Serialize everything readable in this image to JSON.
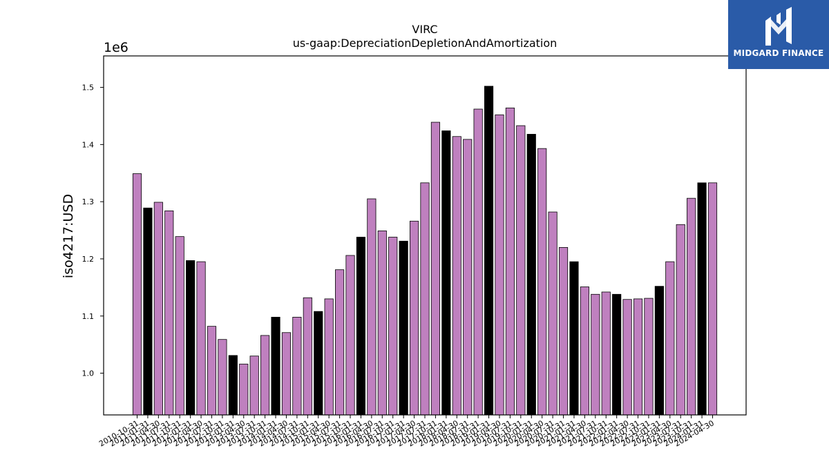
{
  "brand": {
    "name": "MIDGARD FINANCE",
    "logo_icon": "midgard-logo-icon",
    "bg_color": "#2a5ba8"
  },
  "chart_data": {
    "type": "bar",
    "title": "VIRC",
    "subtitle": "us-gaap:DepreciationDepletionAndAmortization",
    "ylabel": "iso4217:USD",
    "xlabel": "",
    "offset_text": "1e6",
    "scale": 1000000,
    "ylim": [
      0.927,
      1.555
    ],
    "yticks": [
      1.0,
      1.1,
      1.2,
      1.3,
      1.4,
      1.5
    ],
    "ytick_labels": [
      "1.0",
      "1.1",
      "1.2",
      "1.3",
      "1.4",
      "1.5"
    ],
    "grid": false,
    "colors": {
      "default": "#bf80bf",
      "highlight": "#000000",
      "edge": "#000000"
    },
    "categories": [
      "2010-10-31",
      "2011-01-31",
      "2011-04-30",
      "2011-07-31",
      "2011-10-31",
      "2012-01-31",
      "2012-04-30",
      "2012-07-31",
      "2012-10-31",
      "2013-01-31",
      "2013-04-30",
      "2013-07-31",
      "2013-10-31",
      "2014-01-31",
      "2014-04-30",
      "2014-07-31",
      "2014-10-31",
      "2015-01-31",
      "2015-04-30",
      "2015-07-31",
      "2015-10-31",
      "2016-01-31",
      "2016-04-30",
      "2016-07-31",
      "2016-10-31",
      "2017-01-31",
      "2017-04-30",
      "2017-07-31",
      "2017-10-31",
      "2018-01-31",
      "2018-04-30",
      "2018-07-31",
      "2018-10-31",
      "2019-01-31",
      "2019-04-30",
      "2019-07-31",
      "2019-10-31",
      "2020-01-31",
      "2020-04-30",
      "2020-07-31",
      "2020-10-31",
      "2021-01-31",
      "2021-04-30",
      "2021-07-31",
      "2021-10-31",
      "2022-01-31",
      "2022-04-30",
      "2022-07-31",
      "2022-10-31",
      "2023-01-31",
      "2023-04-30",
      "2023-07-31",
      "2023-10-31",
      "2024-01-31",
      "2024-04-30"
    ],
    "values": [
      1.349,
      1.289,
      1.299,
      1.284,
      1.239,
      1.197,
      1.195,
      1.082,
      1.059,
      1.031,
      1.016,
      1.03,
      1.066,
      1.098,
      1.071,
      1.098,
      1.132,
      1.108,
      1.13,
      1.181,
      1.206,
      1.238,
      1.305,
      1.249,
      1.238,
      1.231,
      1.266,
      1.333,
      1.439,
      1.424,
      1.414,
      1.409,
      1.462,
      1.502,
      1.452,
      1.464,
      1.433,
      1.418,
      1.393,
      1.282,
      1.22,
      1.195,
      1.151,
      1.138,
      1.142,
      1.138,
      1.129,
      1.13,
      1.131,
      1.152,
      1.195,
      1.26,
      1.306,
      1.333,
      1.333
    ],
    "highlight": [
      false,
      true,
      false,
      false,
      false,
      true,
      false,
      false,
      false,
      true,
      false,
      false,
      false,
      true,
      false,
      false,
      false,
      true,
      false,
      false,
      false,
      true,
      false,
      false,
      false,
      true,
      false,
      false,
      false,
      true,
      false,
      false,
      false,
      true,
      false,
      false,
      false,
      true,
      false,
      false,
      false,
      true,
      false,
      false,
      false,
      true,
      false,
      false,
      false,
      true,
      false,
      false,
      false,
      true,
      false
    ]
  }
}
